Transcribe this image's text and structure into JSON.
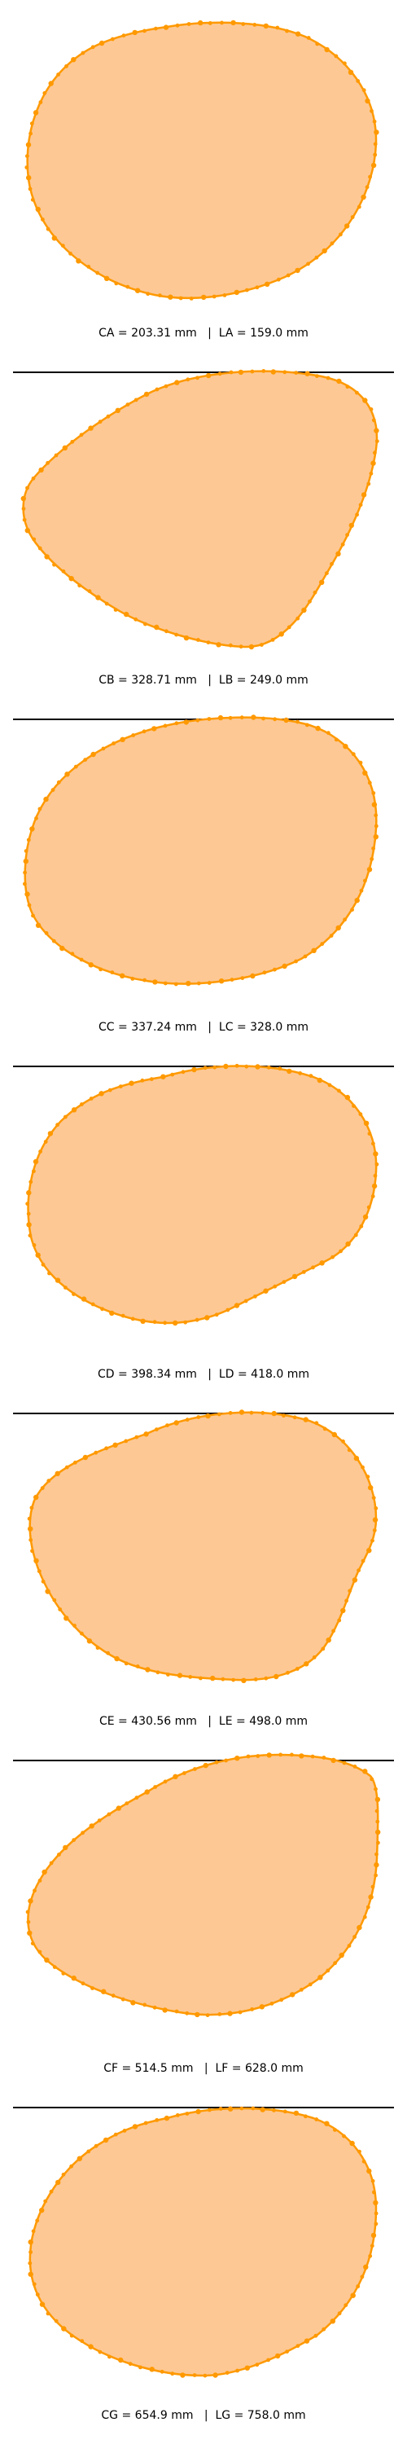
{
  "style": {
    "fill_color": "#fdc894",
    "stroke_color": "#ff9900",
    "divider_color": "#000000"
  },
  "panels": [
    {
      "circ_label": "CA",
      "circ_value": "203.31",
      "len_label": "LA",
      "len_value": "159.0",
      "unit": "mm"
    },
    {
      "circ_label": "CB",
      "circ_value": "328.71",
      "len_label": "LB",
      "len_value": "249.0",
      "unit": "mm"
    },
    {
      "circ_label": "CC",
      "circ_value": "337.24",
      "len_label": "LC",
      "len_value": "328.0",
      "unit": "mm"
    },
    {
      "circ_label": "CD",
      "circ_value": "398.34",
      "len_label": "LD",
      "len_value": "418.0",
      "unit": "mm"
    },
    {
      "circ_label": "CE",
      "circ_value": "430.56",
      "len_label": "LE",
      "len_value": "498.0",
      "unit": "mm"
    },
    {
      "circ_label": "CF",
      "circ_value": "514.5",
      "len_label": "LF",
      "len_value": "628.0",
      "unit": "mm"
    },
    {
      "circ_label": "CG",
      "circ_value": "654.9",
      "len_label": "LG",
      "len_value": "758.0",
      "unit": "mm"
    }
  ]
}
